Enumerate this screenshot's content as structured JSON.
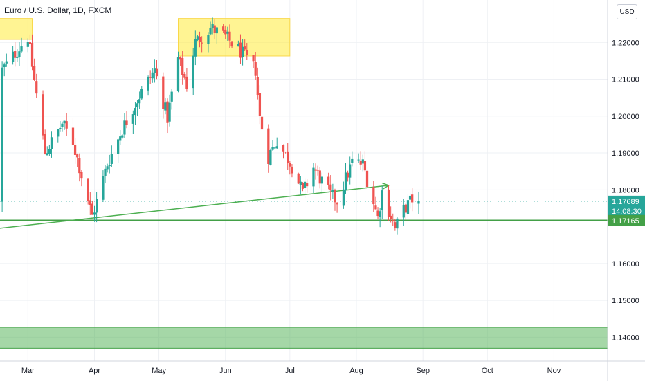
{
  "header": {
    "symbol_title": "Euro / U.S. Dollar, 1D, FXCM",
    "currency_button": "USD"
  },
  "colors": {
    "up": "#26a69a",
    "down": "#ef5350",
    "trendline": "#4caf50",
    "support_line": "#43a047",
    "zone_yellow": "#ffeb3b",
    "zone_green": "#4caf50",
    "price_badge": "#26a69a",
    "support_badge": "#43a047"
  },
  "chart_data": {
    "type": "candlestick",
    "symbol": "EURUSD",
    "timeframe": "1D",
    "x_axis_labels": [
      "Mar",
      "Apr",
      "May",
      "Jun",
      "Jul",
      "Aug",
      "Sep",
      "Oct",
      "Nov"
    ],
    "x_axis_dates": [
      "2021-03-01",
      "2021-04-01",
      "2021-05-01",
      "2021-06-01",
      "2021-07-01",
      "2021-08-01",
      "2021-09-01",
      "2021-10-01",
      "2021-11-01"
    ],
    "y_axis_ticks": [
      "1.22000",
      "1.21000",
      "1.20000",
      "1.19000",
      "1.18000",
      "1.16000",
      "1.15000",
      "1.14000"
    ],
    "y_axis_values": [
      1.22,
      1.21,
      1.2,
      1.19,
      1.18,
      1.16,
      1.15,
      1.14
    ],
    "ylim": [
      1.1335,
      1.2315
    ],
    "xlim": [
      "2021-02-16",
      "2021-11-26"
    ],
    "grid": true,
    "current_price": {
      "value": 1.17689,
      "label": "1.17689",
      "countdown": "14:08:30"
    },
    "support_level": {
      "value": 1.17165,
      "label": "1.17165"
    },
    "trendline": {
      "from": {
        "date": "2021-02-15",
        "price": 1.1695
      },
      "to": {
        "date": "2021-08-16",
        "price": 1.1812
      }
    },
    "zones": [
      {
        "kind": "resistance",
        "x_from": "2021-02-15",
        "x_to": "2021-03-03",
        "y_from": 1.2208,
        "y_to": 1.2265
      },
      {
        "kind": "resistance",
        "x_from": "2021-05-10",
        "x_to": "2021-07-01",
        "y_from": 1.2163,
        "y_to": 1.2265
      },
      {
        "kind": "demand",
        "x_from": "2021-02-15",
        "x_to": "2021-11-26",
        "y_from": 1.137,
        "y_to": 1.1427
      }
    ],
    "anchors": [
      [
        "2021-02-17",
        1.2125
      ],
      [
        "2021-02-25",
        1.2185
      ],
      [
        "2021-03-01",
        1.2215
      ],
      [
        "2021-03-09",
        1.19
      ],
      [
        "2021-03-17",
        1.198
      ],
      [
        "2021-03-22",
        1.193
      ],
      [
        "2021-03-31",
        1.1728
      ],
      [
        "2021-04-07",
        1.187
      ],
      [
        "2021-04-14",
        1.1965
      ],
      [
        "2021-04-21",
        1.2045
      ],
      [
        "2021-04-29",
        1.2125
      ],
      [
        "2021-05-05",
        1.1995
      ],
      [
        "2021-05-10",
        1.2155
      ],
      [
        "2021-05-14",
        1.2085
      ],
      [
        "2021-05-18",
        1.22
      ],
      [
        "2021-05-25",
        1.224
      ],
      [
        "2021-06-01",
        1.2215
      ],
      [
        "2021-06-08",
        1.2175
      ],
      [
        "2021-06-15",
        1.2125
      ],
      [
        "2021-06-17",
        1.1995
      ],
      [
        "2021-06-21",
        1.189
      ],
      [
        "2021-06-25",
        1.1935
      ],
      [
        "2021-07-02",
        1.1865
      ],
      [
        "2021-07-07",
        1.179
      ],
      [
        "2021-07-12",
        1.186
      ],
      [
        "2021-07-20",
        1.1785
      ],
      [
        "2021-07-23",
        1.177
      ],
      [
        "2021-07-30",
        1.1875
      ],
      [
        "2021-08-04",
        1.187
      ],
      [
        "2021-08-11",
        1.1725
      ],
      [
        "2021-08-13",
        1.1795
      ],
      [
        "2021-08-19",
        1.1695
      ],
      [
        "2021-08-23",
        1.1745
      ],
      [
        "2021-08-27",
        1.1775
      ],
      [
        "2021-08-30",
        1.1769
      ]
    ]
  }
}
